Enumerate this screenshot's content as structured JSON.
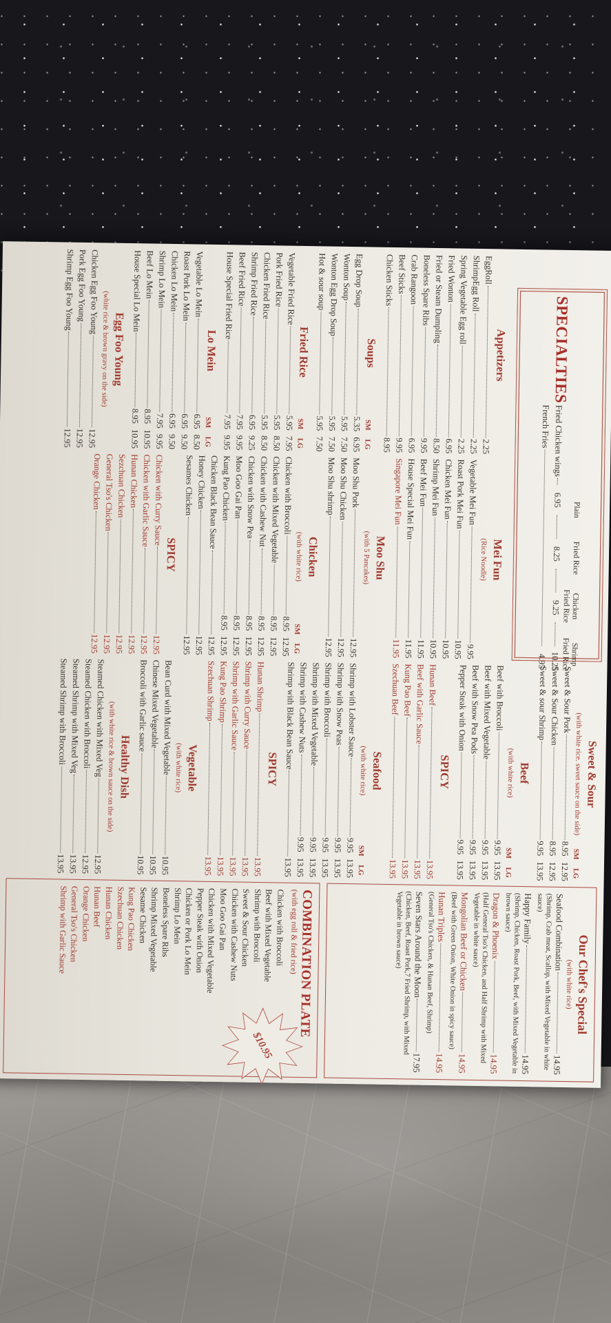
{
  "photo": {
    "accent_red": "#a03a2f",
    "paper_color": "#edebe4",
    "background_top": "#17171c",
    "table_grey": "#8d8a85"
  },
  "menu": {
    "size_labels": "SM LG",
    "spicy_label": "SPICY",
    "specialties": {
      "title": "SPECIALTIES",
      "headers": [
        [
          "Plain",
          ""
        ],
        [
          "Fried Rice",
          ""
        ],
        [
          "Chicken",
          "Fried Rice"
        ],
        [
          "Shrimp",
          "Fried Rice"
        ]
      ],
      "items": [
        {
          "n": "Fried Chicken wings",
          "prices": [
            "6.95",
            "8.25",
            "9.25",
            "10.25"
          ]
        },
        {
          "n": "French Fries",
          "prices": [
            "4.95"
          ]
        }
      ]
    },
    "col1": [
      {
        "heading": "Appetizers",
        "items": [
          {
            "n": "EggRoll",
            "p": "2.25"
          },
          {
            "n": "ShrimpEgg Roll",
            "p": "2.25"
          },
          {
            "n": "Spring Vegetable Egg roll",
            "p": "2.25"
          },
          {
            "n": "Fried Wonton",
            "p": "6.95"
          },
          {
            "n": "Fried or Steam Dumpling",
            "p": "8.50"
          },
          {
            "n": "Boneless Spare Ribs",
            "p": "9.95"
          },
          {
            "n": "Crab Rangoon",
            "p": "6.95"
          },
          {
            "n": "Beef Sticks",
            "p": "9.95"
          },
          {
            "n": "Chicken Sticks",
            "p": "8.95"
          }
        ]
      },
      {
        "heading": "Soups",
        "smlg_on": "heading",
        "items": [
          {
            "n": "Egg Drop Soup",
            "p": "5.35 6.95"
          },
          {
            "n": "Wonton Soup",
            "p": "5.95 7.50"
          },
          {
            "n": "Wonton Egg Drop Soup",
            "p": "5.95 7.50"
          },
          {
            "n": "Hot & sour soup",
            "p": "5.95 7.50"
          }
        ]
      },
      {
        "heading": "Fried Rice",
        "smlg_on": "heading",
        "items": [
          {
            "n": "Vegetable Fried Rice",
            "p": "5.95 7.95"
          },
          {
            "n": "Pork Fried Rice",
            "p": "5.95 8.50"
          },
          {
            "n": "Chicken Fried Rice",
            "p": "5.95 8.50"
          },
          {
            "n": "Shrimp Fried Rice",
            "p": "6.95 9.25"
          },
          {
            "n": "Beef Fried Rice",
            "p": "7.95 9.95"
          },
          {
            "n": "House Special Fried Rice",
            "p": "7.95 9.95"
          }
        ]
      },
      {
        "heading": "Lo Mein",
        "smlg_on": "heading",
        "items": [
          {
            "n": "Vegetable Lo Mein",
            "p": "6.95 8.50"
          },
          {
            "n": "Roast Pork Lo Mein",
            "p": "6.95 9.50"
          },
          {
            "n": "Chicken Lo Mein",
            "p": "6.95 9.50"
          },
          {
            "n": "Shrimp Lo Mein",
            "p": "7.95 9.95"
          },
          {
            "n": "Beef Lo Mein",
            "p": "8.95 10.95"
          },
          {
            "n": "House Special Lo Mein",
            "p": "8.95 10.95"
          }
        ]
      },
      {
        "heading": "Egg Foo Young",
        "note": "(white rice & brown gravy on the side)",
        "items": [
          {
            "n": "Chicken Egg Foo Young",
            "p": "12.95"
          },
          {
            "n": "Pork Egg Foo Young",
            "p": "12.95"
          },
          {
            "n": "Shrimp Egg Foo Young",
            "p": "12.95"
          }
        ]
      }
    ],
    "col2": [
      {
        "heading": "Mei Fun",
        "note": "(Rice Noodle)",
        "items": [
          {
            "n": "Vegetable Mei Fun",
            "p": "9.95"
          },
          {
            "n": "Roast Pork Mei Fun",
            "p": "10.95"
          },
          {
            "n": "Chicken Mei Fun",
            "p": "10.95"
          },
          {
            "n": "Shrimp Mei Fun",
            "p": "10.95"
          },
          {
            "n": "Beef Mei Fun",
            "p": "11.95"
          },
          {
            "n": "House Special Mei Fun",
            "p": "11.95"
          },
          {
            "n": "Singapore Mei Fun",
            "p": "11.95",
            "r": 1
          }
        ]
      },
      {
        "heading": "Moo Shu",
        "note": "(with 5 Pancakes)",
        "items": [
          {
            "n": "Moo Shu Pork",
            "p": "12.95"
          },
          {
            "n": "Moo Shu Chicken",
            "p": "12.95"
          },
          {
            "n": "Moo Shu shrimp",
            "p": "12.95"
          }
        ]
      },
      {
        "heading": "Chicken",
        "note": "(with white rice)",
        "smlg_on": "note",
        "items": [
          {
            "n": "Chicken with Broccoli",
            "p": "8.95 12.95"
          },
          {
            "n": "Chicken with Mixed Vegetable",
            "p": "8.95 12.95"
          },
          {
            "n": "Chicken with Cashew Nut",
            "p": "8.95 12.95"
          },
          {
            "n": "Chicken with Snow Pea",
            "p": "8.95 12.95"
          },
          {
            "n": "Moo Goo Gai Pan",
            "p": "8.95 12.95"
          },
          {
            "n": "Kung Pao Chicken",
            "p": "8.95 12.95"
          },
          {
            "n": "Chicken Black Bean Sauce",
            "p": "12.95"
          },
          {
            "n": "Honey Chicken",
            "p": "12.95"
          },
          {
            "n": "Sesames Chicken",
            "p": "12.95"
          }
        ]
      },
      {
        "heading": "SPICY",
        "items": [
          {
            "n": "Chicken with Curry Sauce",
            "p": "12.95",
            "r": 1
          },
          {
            "n": "Chicken with Garlic Sauce",
            "p": "12.95",
            "r": 1
          },
          {
            "n": "Hunan Chicken",
            "p": "12.95",
            "r": 1
          },
          {
            "n": "Sezchuan Chicken",
            "p": "12.95",
            "r": 1
          },
          {
            "n": "General Tso's Chicken",
            "p": "12.95",
            "r": 1
          },
          {
            "n": "Orange Chicken",
            "p": "12.95",
            "r": 1
          }
        ]
      }
    ],
    "col3": [
      {
        "heading": "Sweet & Sour",
        "note": "(with white rice. sweet sauce on the side)",
        "smlg_on": "note",
        "items": [
          {
            "n": "Sweet & Sour Pork",
            "p": "8.95 12.95"
          },
          {
            "n": "Sweet & Sour Chicken",
            "p": "8.95 12.95"
          },
          {
            "n": "Sweet & sour Shrimp",
            "p": "9.95 13.95"
          }
        ]
      },
      {
        "heading": "Beef",
        "note": "(with white rice)",
        "smlg_on": "note",
        "items": [
          {
            "n": "Beef with Broccoli",
            "p": "9.95 13.95"
          },
          {
            "n": "Beef with Mixed Vegetable",
            "p": "9.95 13.95"
          },
          {
            "n": "Beef with Snow Pea Pods",
            "p": "9.95 13.95"
          },
          {
            "n": "Pepper Steak with Onion",
            "p": "9.95 13.95"
          }
        ]
      },
      {
        "heading": "SPICY",
        "items": [
          {
            "n": "Hunan Beef",
            "p": "13.95",
            "r": 1
          },
          {
            "n": "Beef with Garlic Sauce",
            "p": "13.95",
            "r": 1
          },
          {
            "n": "Kung Pao Beef",
            "p": "13.95",
            "r": 1
          },
          {
            "n": "Szechuan Beef",
            "p": "13.95",
            "r": 1
          }
        ]
      },
      {
        "heading": "Seafood",
        "note": "(with white rice)",
        "smlg_on": "note",
        "items": [
          {
            "n": "Shrimp with Lobster Sauce",
            "p": "9.95 13.95"
          },
          {
            "n": "Shrimp with Snow Peas",
            "p": "9.95 13.95"
          },
          {
            "n": "Shrimp with Broccoli",
            "p": "9.95 13.95"
          },
          {
            "n": "Shrimp with Mixed Vegetable",
            "p": "9.95 13.95"
          },
          {
            "n": "Shrimp with Cashew Nuts",
            "p": "9.95 13.95"
          },
          {
            "n": "Shrimp with Black Bean Sauce",
            "p": "13.95"
          }
        ]
      },
      {
        "heading": "SPICY",
        "items": [
          {
            "n": "Hunan Shrimp",
            "p": "13.95",
            "r": 1
          },
          {
            "n": "Shrimp with Curry Sauce",
            "p": "13.95",
            "r": 1
          },
          {
            "n": "Shrimp with Garlic Sauce",
            "p": "13.95",
            "r": 1
          },
          {
            "n": "Kung Pao Shrimp",
            "p": "13.95",
            "r": 1
          },
          {
            "n": "Szechuan Shrimp",
            "p": "13.95",
            "r": 1
          }
        ]
      },
      {
        "heading": "Vegetable",
        "note": "(with white rice)",
        "items": [
          {
            "n": "Bean Curd with Mixed Vegetable",
            "p": "10.95"
          },
          {
            "n": "Chinese Mixed Vegetable",
            "p": "10.95"
          },
          {
            "n": "Broccoli with Garlic sauce",
            "p": "10.95"
          }
        ]
      },
      {
        "heading": "Healthy Dish",
        "note": "(with white rice & brown sauce on the side)",
        "items": [
          {
            "n": "Steamed Chicken with Mixed Veg",
            "p": "12.95"
          },
          {
            "n": "Steamed Chicken with Broccoli",
            "p": "12.95"
          },
          {
            "n": "Steamed Shrimp with Mixed Veg",
            "p": "13.95"
          },
          {
            "n": "Steamed Shrimp with Broccoli",
            "p": "13.95"
          }
        ]
      }
    ],
    "chefs": {
      "heading": "Our Chef's Special",
      "note": "(with white rice)",
      "items": [
        {
          "n": "Seafood Combination",
          "p": "14.95",
          "d": "(Shrimp, Crab meat, Scallop, with Mixed Vegetable in white sauce)"
        },
        {
          "n": "Happy Family",
          "p": "14.95",
          "d": "(Shrimp, Chicken, Roast Pork, Beef, with Mixed Vegetable in brown sauce)"
        },
        {
          "n": "Dragon & Phoenix",
          "p": "14.95",
          "d": "(Half General Tso's Chicken, and Half Shrimp with Mixed Vegetable in white sauce)",
          "r": 1
        },
        {
          "n": "Mongolian Beef or Chicken",
          "p": "14.95",
          "d": "(Beef with Green Onion, White Onion in spicy sauce)",
          "r": 1
        },
        {
          "n": "Hunan Triples",
          "p": "14.95",
          "d": "(General Tso's Chicken, & Hunan Beef, Shrimp)",
          "r": 1
        },
        {
          "n": "Seven Stars Around the Moon",
          "p": "17.95",
          "d": "(Chicken, Beef, Roast Pork,7 Fried Shrimp, with Mixed Vegetable in brown sauce)"
        }
      ]
    },
    "combo": {
      "title": "COMBINATION PLATE",
      "note": "(with egg roll & fried rice)",
      "star_price": "$10.95",
      "items_black": [
        "Chicken with Broccoli",
        "Beef with Mixed Vegetable",
        "Shrimp with Broccoli",
        "Sweet & Sour Chicken",
        "Chicken with Cashew Nuts",
        "Moo Goo Gai Pan",
        "Chicken with Mixed Vegetable",
        "Pepper Steak with Onion",
        "Chicken or Pork Lo Mein",
        "Shrimp Lo Mein",
        "Boneless Spare Ribs",
        "Shrimp Mixed Vegetable",
        "Sesame Chicken"
      ],
      "items_red": [
        "Kung Pao Chicken",
        "Szechuan Chicken",
        "Hunan Chicken",
        "Hunan Beef",
        "Orange Chicken",
        "General Tso's Chicken",
        "Shrimp with Garlic Sauce"
      ]
    }
  }
}
